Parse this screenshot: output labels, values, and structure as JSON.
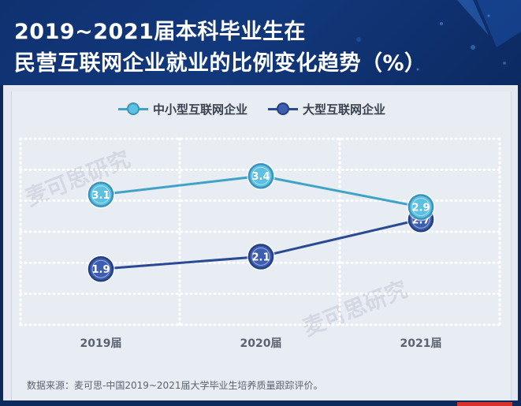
{
  "title": {
    "line1": "2019~2021届本科毕业生在",
    "line2": "民营互联网企业就业的比例变化趋势（%）"
  },
  "source": "数据来源：麦可思-中国2019~2021届大学毕业生培养质量跟踪评价。",
  "watermark": "麦可思研究",
  "colors": {
    "header_bg": "#0f3170",
    "series_small": "#3fa3c8",
    "series_large": "#2a4a94",
    "grid": "#ffffff"
  },
  "chart_data": {
    "type": "line",
    "categories": [
      "2019届",
      "2020届",
      "2021届"
    ],
    "series": [
      {
        "name": "中小型互联网企业",
        "values": [
          3.1,
          3.4,
          2.9
        ],
        "labels": [
          "3.1",
          "3.4",
          "2.9"
        ]
      },
      {
        "name": "大型互联网企业",
        "values": [
          1.9,
          2.1,
          2.7
        ],
        "labels": [
          "1.9",
          "2.1",
          "2.7"
        ]
      }
    ],
    "xlabel": "",
    "ylabel": "",
    "ylim": [
      1.0,
      4.0
    ],
    "grid": true,
    "legend_position": "top"
  }
}
